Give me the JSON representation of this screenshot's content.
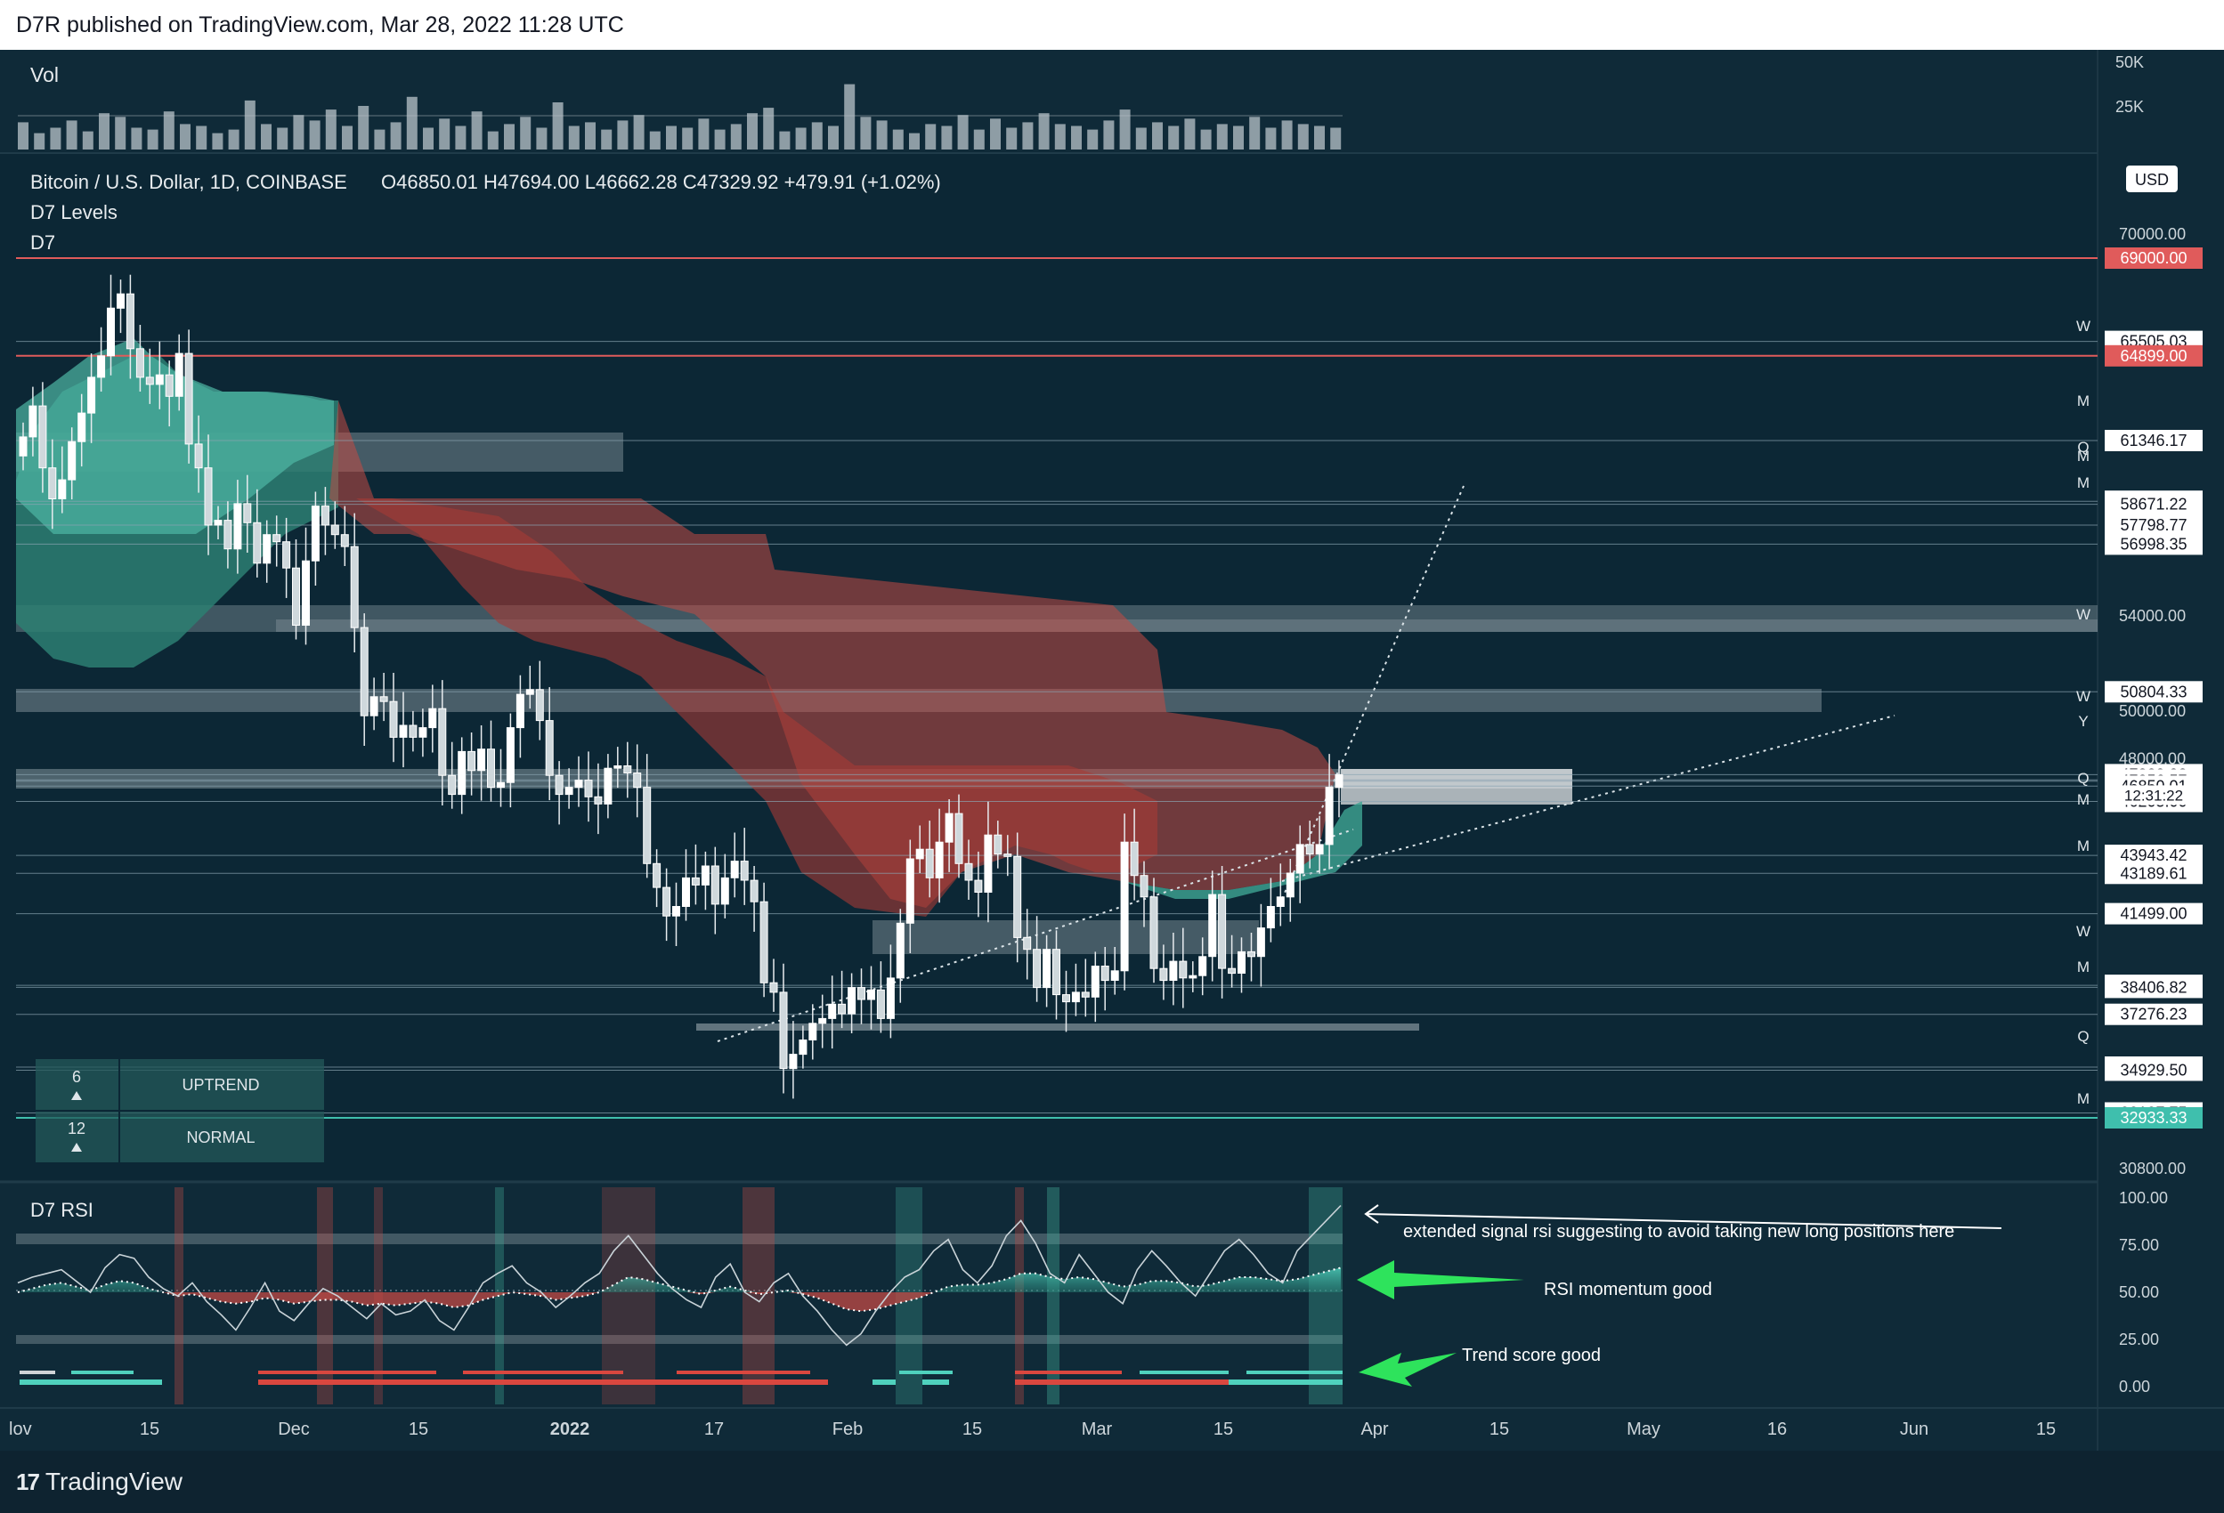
{
  "header": {
    "published": "D7R published on TradingView.com, Mar 28, 2022 11:28 UTC"
  },
  "footer": {
    "brand": "TradingView",
    "logo_mark": "17"
  },
  "legend": {
    "volume": "Vol",
    "symbol": "Bitcoin / U.S. Dollar, 1D, COINBASE",
    "ohlc": "O46850.01  H47694.00  L46662.28  C47329.92  +479.91 (+1.02%)",
    "indicator1": "D7 Levels",
    "indicator2": "D7",
    "rsi": "D7 RSI"
  },
  "currency": "USD",
  "status_table": [
    {
      "value": "6",
      "label": "UPTREND"
    },
    {
      "value": "12",
      "label": "NORMAL"
    }
  ],
  "annotations": {
    "rsi_extended": "extended signal rsi suggesting to avoid taking new long positions here",
    "rsi_momentum": "RSI momentum good",
    "trend_score": "Trend score good"
  },
  "chart_data": [
    {
      "type": "bar",
      "title": "Vol",
      "y_ticks": [
        "50K",
        "25K"
      ],
      "values": [
        15,
        9,
        12,
        16,
        10,
        20,
        18,
        12,
        11,
        21,
        14,
        13,
        9,
        11,
        27,
        14,
        12,
        19,
        16,
        22,
        13,
        24,
        11,
        15,
        29,
        12,
        17,
        13,
        21,
        10,
        14,
        18,
        12,
        26,
        13,
        15,
        11,
        16,
        19,
        10,
        13,
        12,
        17,
        11,
        14,
        20,
        23,
        10,
        12,
        15,
        13,
        36,
        18,
        16,
        11,
        9,
        14,
        13,
        19,
        11,
        17,
        12,
        15,
        20,
        14,
        13,
        11,
        16,
        22,
        12,
        15,
        13,
        17,
        11,
        14,
        13,
        18,
        12,
        16,
        14,
        13,
        12
      ]
    },
    {
      "type": "candlestick",
      "symbol": "Bitcoin / U.S. Dollar, 1D, COINBASE",
      "ohlc": {
        "open": 46850.01,
        "high": 47694.0,
        "low": 46662.28,
        "close": 47329.92,
        "change": 479.91,
        "change_pct": 1.02
      },
      "y_axis_ticks": [
        "70000.00",
        "54000.00",
        "50000.00",
        "48000.00",
        "30800.00"
      ],
      "x_axis_ticks": [
        "lov",
        "15",
        "Dec",
        "15",
        "2022",
        "17",
        "Feb",
        "15",
        "Mar",
        "15",
        "Apr",
        "15",
        "May",
        "16",
        "Jun",
        "15"
      ],
      "closes": [
        61500,
        62800,
        60200,
        58900,
        59700,
        61300,
        62500,
        64000,
        64900,
        66900,
        67500,
        65200,
        64000,
        63700,
        64100,
        63200,
        65000,
        61200,
        60200,
        57800,
        58000,
        56800,
        58700,
        57900,
        56200,
        57400,
        57100,
        56000,
        53600,
        56300,
        58600,
        57800,
        57400,
        56900,
        53500,
        49800,
        50600,
        50400,
        48900,
        49400,
        48900,
        49300,
        50100,
        47300,
        46500,
        48300,
        47500,
        48400,
        46800,
        47000,
        49300,
        50700,
        50900,
        49600,
        47300,
        46500,
        46800,
        47100,
        46400,
        46100,
        47600,
        47700,
        47400,
        46800,
        43600,
        42600,
        41400,
        41800,
        43000,
        42700,
        43500,
        41900,
        43000,
        43700,
        42900,
        42000,
        38600,
        38200,
        35000,
        35600,
        36200,
        36900,
        37100,
        37700,
        37300,
        38400,
        37900,
        38300,
        37100,
        38800,
        41100,
        43800,
        44200,
        43000,
        44500,
        45700,
        43600,
        42900,
        42400,
        44800,
        44000,
        43900,
        40500,
        40000,
        38400,
        40000,
        38100,
        37800,
        38200,
        38000,
        39300,
        38700,
        39100,
        44500,
        43100,
        42200,
        39200,
        38700,
        39500,
        38800,
        38900,
        39700,
        42300,
        39200,
        39000,
        39900,
        39700,
        40900,
        41800,
        42200,
        43200,
        44400,
        44000,
        44400,
        46800,
        47330
      ],
      "levels": [
        69000.0,
        65505.03,
        64899.0,
        61346.17,
        58800.01,
        58671.22,
        57798.77,
        56998.35,
        50804.33,
        47329.92,
        47110.33,
        47056.57,
        46850.01,
        46205.0,
        43943.42,
        43189.61,
        41499.0,
        38492.53,
        38406.82,
        37276.23,
        35060.0,
        34929.5,
        33137.75,
        32933.33
      ],
      "highlighted_levels": {
        "69000.00": "#e05b5b",
        "64899.00": "#e05b5b",
        "32933.33": "#3fbfad"
      },
      "countdown": "12:31:22",
      "level_marks": [
        "W",
        "M",
        "Q",
        "M",
        "M",
        "W",
        "W",
        "Y",
        "Q",
        "M",
        "M",
        "W",
        "M",
        "Q",
        "M"
      ]
    },
    {
      "type": "line",
      "title": "D7 RSI",
      "y_axis_ticks": [
        "100.00",
        "75.00",
        "50.00",
        "25.00",
        "0.00"
      ],
      "ylim": [
        0,
        100
      ],
      "series": [
        {
          "values": [
            55,
            58,
            60,
            62,
            56,
            50,
            63,
            70,
            68,
            58,
            52,
            48,
            55,
            45,
            38,
            30,
            42,
            55,
            40,
            35,
            44,
            52,
            48,
            42,
            36,
            44,
            38,
            40,
            46,
            35,
            30,
            42,
            55,
            60,
            64,
            55,
            50,
            42,
            48,
            55,
            60,
            72,
            80,
            70,
            60,
            52,
            46,
            42,
            58,
            65,
            50,
            45,
            55,
            60,
            48,
            40,
            30,
            22,
            28,
            40,
            50,
            58,
            62,
            72,
            78,
            62,
            55,
            64,
            80,
            88,
            76,
            60,
            55,
            70,
            60,
            50,
            44,
            62,
            72,
            64,
            55,
            48,
            60,
            72,
            78,
            70,
            60,
            55,
            72,
            80,
            88,
            96
          ]
        },
        {
          "values": [
            50,
            52,
            54,
            55,
            53,
            51,
            54,
            56,
            55,
            52,
            50,
            48,
            49,
            47,
            45,
            44,
            45,
            47,
            46,
            44,
            45,
            46,
            46,
            45,
            43,
            44,
            43,
            44,
            45,
            44,
            42,
            43,
            46,
            48,
            50,
            49,
            48,
            46,
            47,
            48,
            50,
            54,
            58,
            57,
            55,
            53,
            51,
            49,
            51,
            53,
            51,
            49,
            50,
            51,
            49,
            47,
            44,
            41,
            40,
            41,
            43,
            45,
            47,
            50,
            53,
            54,
            54,
            55,
            57,
            60,
            60,
            58,
            57,
            58,
            57,
            55,
            53,
            54,
            56,
            56,
            55,
            53,
            54,
            56,
            58,
            58,
            57,
            56,
            57,
            59,
            61,
            63
          ]
        }
      ]
    }
  ]
}
